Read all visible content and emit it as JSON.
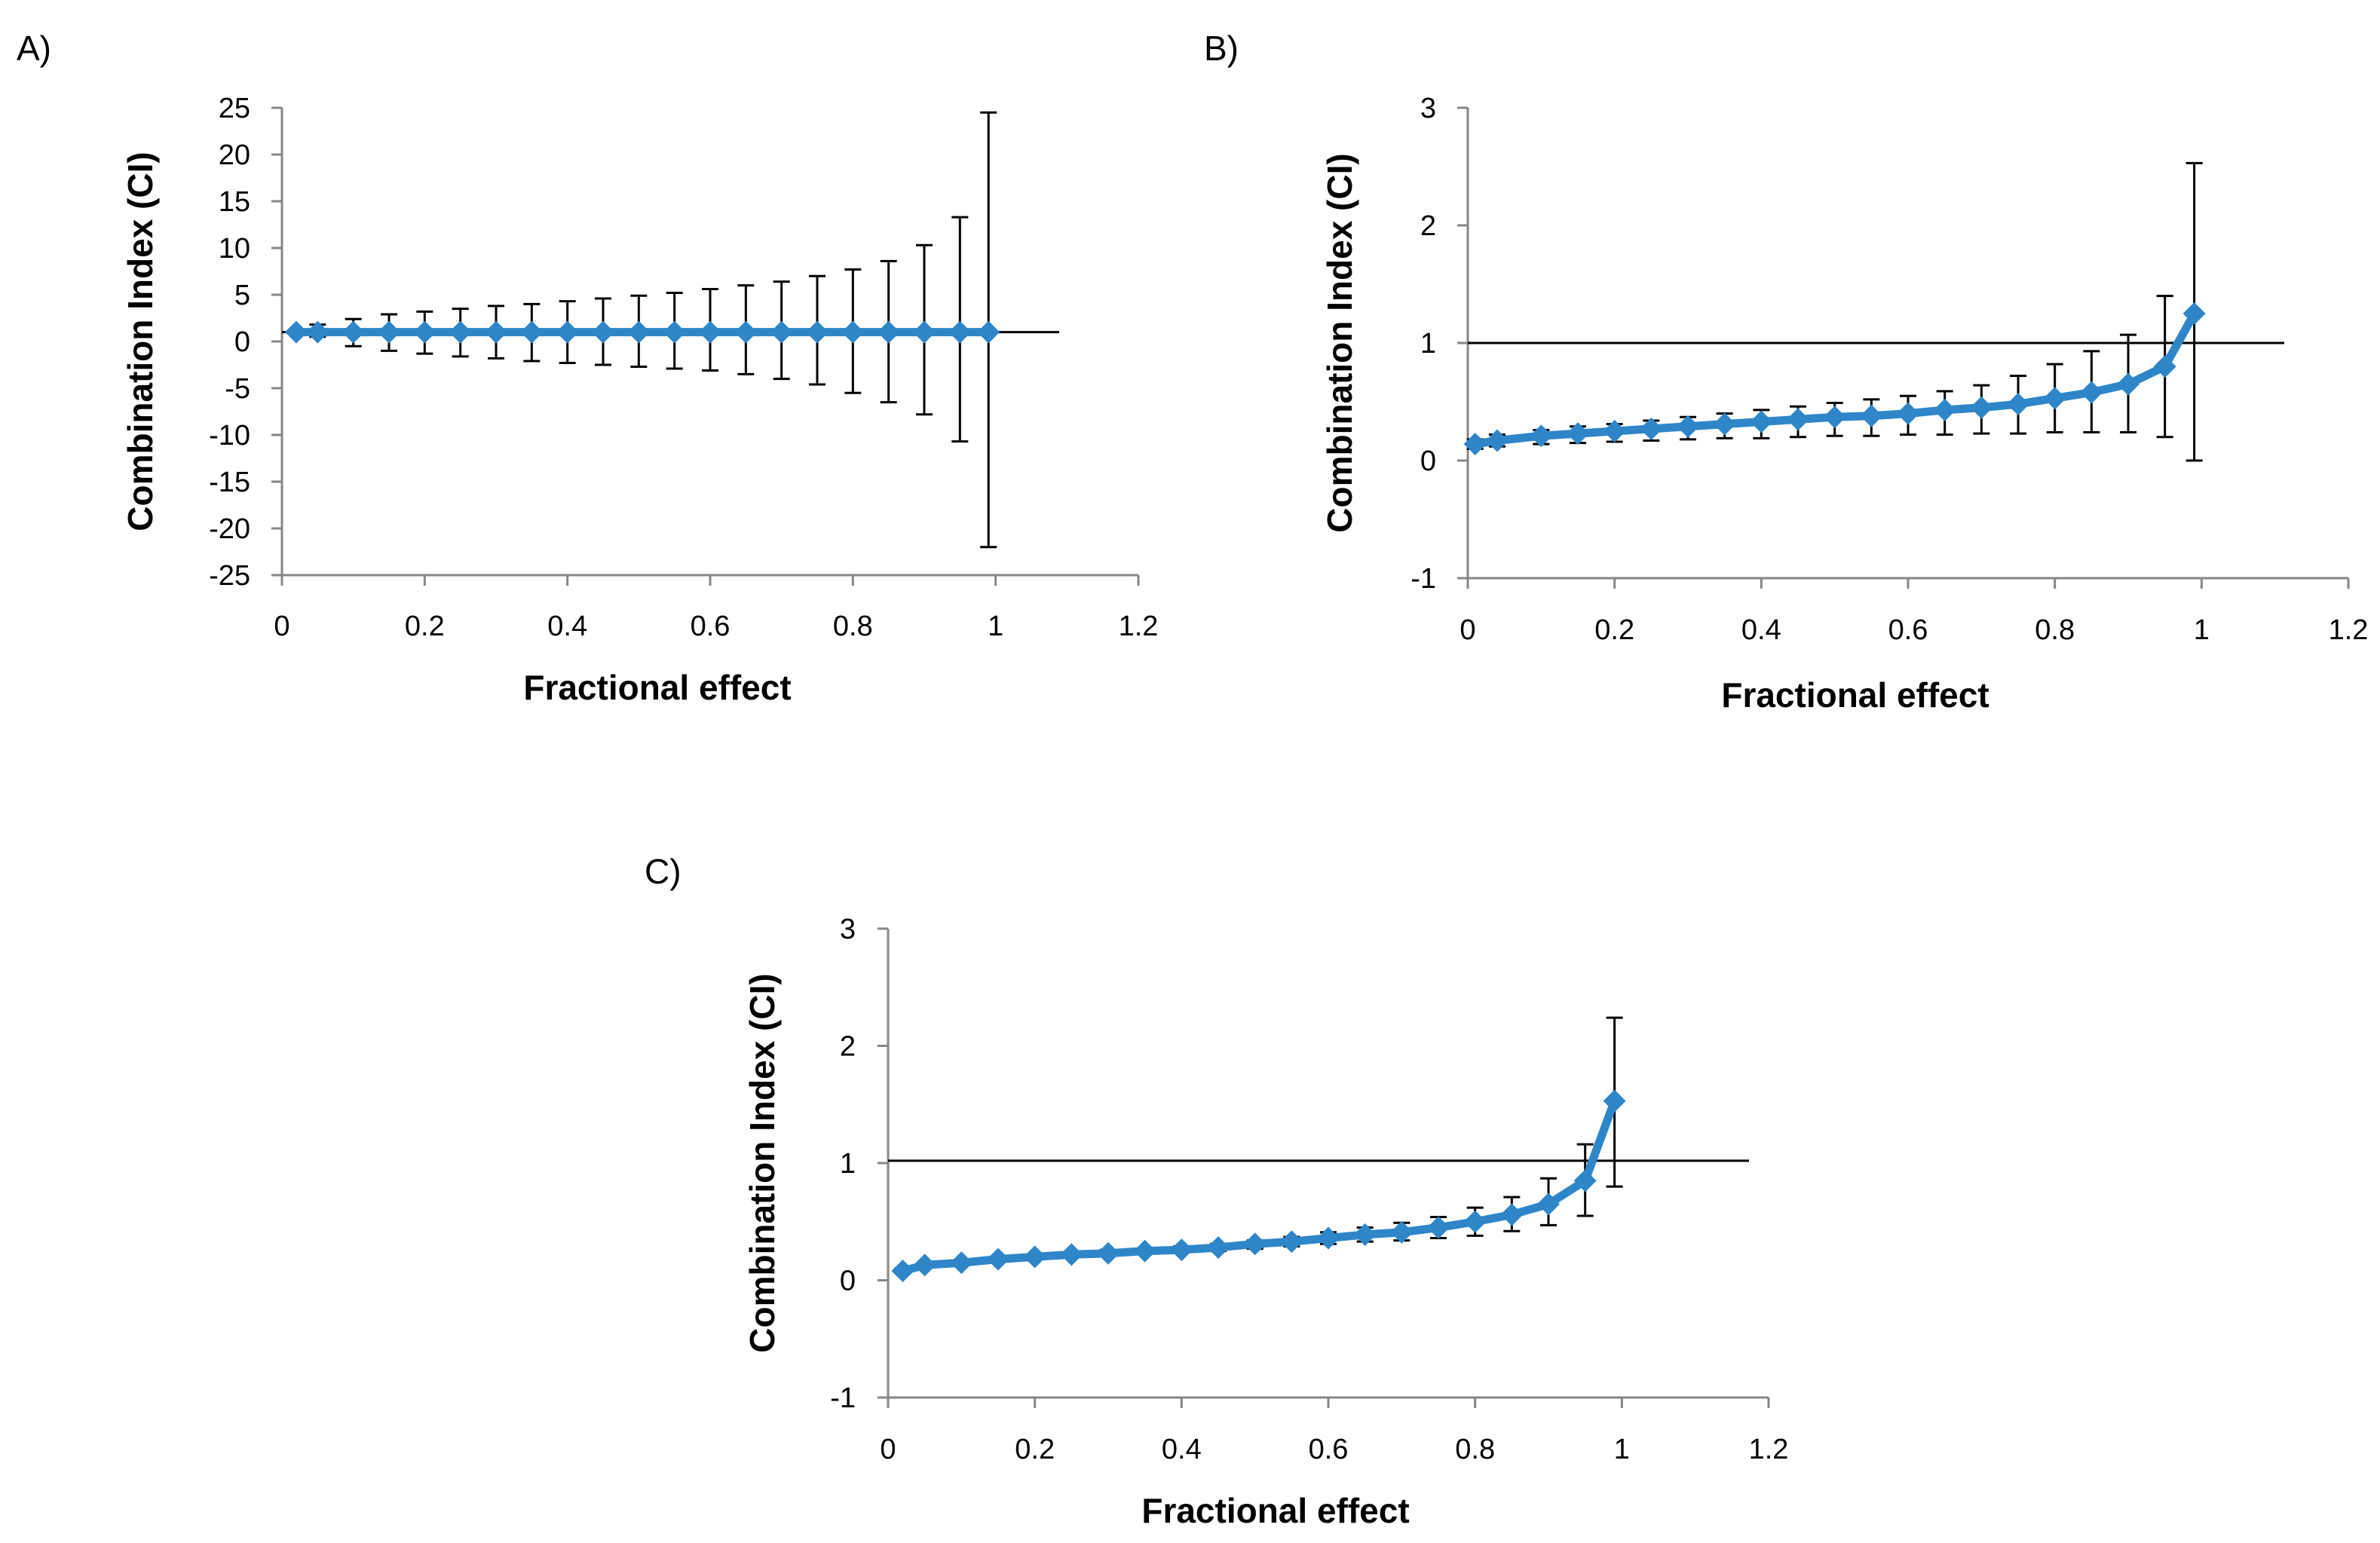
{
  "chart_data": [
    {
      "panel_label": "A)",
      "type": "line",
      "xlabel": "Fractional effect",
      "ylabel": "Combination Index (CI)",
      "xlim": [
        0,
        1.2
      ],
      "ylim": [
        -25,
        25
      ],
      "x_ticks": [
        "0",
        "0.2",
        "0.4",
        "0.6",
        "0.8",
        "1",
        "1.2"
      ],
      "y_ticks": [
        "25",
        "20",
        "15",
        "10",
        "5",
        "0",
        "-5",
        "-10",
        "-15",
        "-20",
        "-25"
      ],
      "reference_line": 1,
      "series": [
        {
          "name": "CI",
          "color": "#2e86c9",
          "x": [
            0.02,
            0.05,
            0.1,
            0.15,
            0.2,
            0.25,
            0.3,
            0.35,
            0.4,
            0.45,
            0.5,
            0.55,
            0.6,
            0.65,
            0.7,
            0.75,
            0.8,
            0.85,
            0.9,
            0.95,
            0.99
          ],
          "y": [
            1,
            1,
            1,
            1,
            1,
            1,
            1,
            1,
            1,
            1,
            1,
            1,
            1,
            1,
            1,
            1,
            1,
            1,
            1,
            1,
            1
          ],
          "err_low": [
            0.8,
            0.5,
            -0.5,
            -1.0,
            -1.3,
            -1.6,
            -1.8,
            -2.1,
            -2.3,
            -2.5,
            -2.7,
            -2.9,
            -3.1,
            -3.5,
            -4.0,
            -4.6,
            -5.5,
            -6.5,
            -7.8,
            -10.7,
            -22.0
          ],
          "err_high": [
            1.2,
            1.8,
            2.4,
            2.9,
            3.2,
            3.5,
            3.8,
            4.0,
            4.3,
            4.6,
            4.9,
            5.2,
            5.6,
            6.0,
            6.4,
            7.0,
            7.7,
            8.6,
            10.3,
            13.3,
            24.5
          ]
        }
      ]
    },
    {
      "panel_label": "B)",
      "type": "line",
      "xlabel": "Fractional effect",
      "ylabel": "Combination Index (CI)",
      "xlim": [
        0,
        1.2
      ],
      "ylim": [
        -1,
        3
      ],
      "x_ticks": [
        "0",
        "0.2",
        "0.4",
        "0.6",
        "0.8",
        "1",
        "1.2"
      ],
      "y_ticks": [
        "3",
        "2",
        "1",
        "0",
        "-1"
      ],
      "reference_line": 1,
      "series": [
        {
          "name": "CI",
          "color": "#2e86c9",
          "x": [
            0.01,
            0.04,
            0.1,
            0.15,
            0.2,
            0.25,
            0.3,
            0.35,
            0.4,
            0.45,
            0.5,
            0.55,
            0.6,
            0.65,
            0.7,
            0.75,
            0.8,
            0.85,
            0.9,
            0.95,
            0.99
          ],
          "y": [
            0.14,
            0.17,
            0.21,
            0.23,
            0.25,
            0.27,
            0.29,
            0.31,
            0.33,
            0.35,
            0.37,
            0.38,
            0.4,
            0.43,
            0.45,
            0.48,
            0.53,
            0.58,
            0.65,
            0.8,
            1.25
          ],
          "err_low": [
            0.1,
            0.12,
            0.14,
            0.15,
            0.16,
            0.17,
            0.18,
            0.19,
            0.19,
            0.2,
            0.21,
            0.21,
            0.22,
            0.22,
            0.23,
            0.23,
            0.24,
            0.24,
            0.24,
            0.2,
            0.0
          ],
          "err_high": [
            0.18,
            0.22,
            0.26,
            0.29,
            0.31,
            0.34,
            0.37,
            0.4,
            0.43,
            0.46,
            0.49,
            0.52,
            0.55,
            0.59,
            0.64,
            0.72,
            0.82,
            0.93,
            1.07,
            1.4,
            2.53
          ]
        }
      ]
    },
    {
      "panel_label": "C)",
      "type": "line",
      "xlabel": "Fractional effect",
      "ylabel": "Combination Index (CI)",
      "xlim": [
        0,
        1.2
      ],
      "ylim": [
        -1,
        3
      ],
      "x_ticks": [
        "0",
        "0.2",
        "0.4",
        "0.6",
        "0.8",
        "1",
        "1.2"
      ],
      "y_ticks": [
        "3",
        "2",
        "1",
        "0",
        "-1"
      ],
      "reference_line": 1.02,
      "series": [
        {
          "name": "CI",
          "color": "#2e86c9",
          "x": [
            0.02,
            0.05,
            0.1,
            0.15,
            0.2,
            0.25,
            0.3,
            0.35,
            0.4,
            0.45,
            0.5,
            0.55,
            0.6,
            0.65,
            0.7,
            0.75,
            0.8,
            0.85,
            0.9,
            0.95,
            0.99
          ],
          "y": [
            0.08,
            0.13,
            0.15,
            0.18,
            0.2,
            0.22,
            0.23,
            0.25,
            0.26,
            0.28,
            0.31,
            0.33,
            0.36,
            0.39,
            0.41,
            0.45,
            0.5,
            0.56,
            0.65,
            0.85,
            1.53
          ],
          "err_low": [
            0.06,
            0.11,
            0.13,
            0.16,
            0.18,
            0.2,
            0.21,
            0.23,
            0.24,
            0.25,
            0.27,
            0.29,
            0.31,
            0.33,
            0.34,
            0.36,
            0.38,
            0.42,
            0.47,
            0.55,
            0.8
          ],
          "err_high": [
            0.1,
            0.15,
            0.17,
            0.2,
            0.22,
            0.24,
            0.26,
            0.27,
            0.29,
            0.31,
            0.34,
            0.37,
            0.41,
            0.45,
            0.49,
            0.54,
            0.62,
            0.71,
            0.87,
            1.16,
            2.24
          ]
        }
      ]
    }
  ]
}
